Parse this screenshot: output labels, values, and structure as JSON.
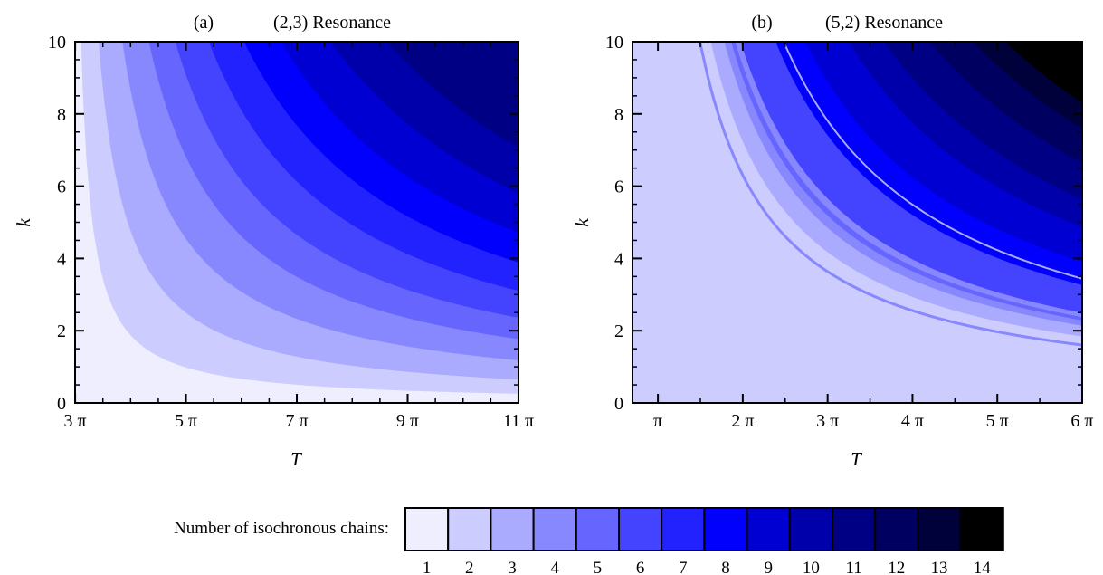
{
  "chart_data": [
    {
      "type": "heatmap",
      "panel": "(a)",
      "title": "(2,3) Resonance",
      "xlabel": "T",
      "ylabel": "k",
      "xlim": [
        9.42,
        34.56
      ],
      "ylim": [
        0,
        10
      ],
      "x_ticks": [
        "3 π",
        "5 π",
        "7 π",
        "9 π",
        "11 π"
      ],
      "x_tick_values": [
        9.4248,
        15.708,
        21.9911,
        28.2743,
        34.5575
      ],
      "y_ticks": [
        "0",
        "2",
        "4",
        "6",
        "8",
        "10"
      ],
      "y_tick_values": [
        0,
        2,
        4,
        6,
        8,
        10
      ],
      "regions_description": "Filled contour bands with boundaries of form k ≈ C/(T − 3π); number of isochronous chains increases toward large T and k",
      "band_levels": [
        1,
        2,
        3,
        4,
        5,
        6,
        7,
        8,
        9,
        10,
        11
      ],
      "boundary_constants": [
        6.5,
        16.5,
        30,
        45,
        60,
        79,
        99,
        120,
        148,
        180
      ]
    },
    {
      "type": "heatmap",
      "panel": "(b)",
      "title": "(5,2) Resonance",
      "xlabel": "T",
      "ylabel": "k",
      "xlim": [
        2.2,
        18.85
      ],
      "ylim": [
        0,
        10
      ],
      "x_ticks": [
        "π",
        "2 π",
        "3 π",
        "4 π",
        "5 π",
        "6 π"
      ],
      "x_tick_values": [
        3.1416,
        6.2832,
        9.4248,
        12.5664,
        15.708,
        18.8496
      ],
      "y_ticks": [
        "0",
        "2",
        "4",
        "6",
        "8",
        "10"
      ],
      "y_tick_values": [
        0,
        2,
        4,
        6,
        8,
        10
      ],
      "regions_description": "Filled contour bands with boundaries of form k ≈ C/(T − 2); background level 2, levels rising to 14 in top-right corner",
      "background_level": 2,
      "band_levels": [
        3,
        4,
        5,
        4,
        6,
        8,
        9,
        10,
        11,
        12,
        13,
        14
      ],
      "boundary_constants": [
        31,
        36,
        38.5,
        40,
        42,
        55,
        66,
        82,
        95,
        112,
        128,
        140,
        156
      ]
    }
  ],
  "colorbar": {
    "label": "Number of isochronous chains:",
    "levels": [
      "1",
      "2",
      "3",
      "4",
      "5",
      "6",
      "7",
      "8",
      "9",
      "10",
      "11",
      "12",
      "13",
      "14"
    ],
    "colors": [
      "#eeeefe",
      "#ccccfe",
      "#aaaafe",
      "#8888fe",
      "#6666fe",
      "#4444fe",
      "#2222fe",
      "#0000fc",
      "#0000d2",
      "#0000aa",
      "#000084",
      "#000060",
      "#00003a",
      "#000000"
    ]
  },
  "panels": {
    "a": {
      "letter": "(a)",
      "title": "(2,3) Resonance"
    },
    "b": {
      "letter": "(b)",
      "title": "(5,2) Resonance"
    }
  }
}
